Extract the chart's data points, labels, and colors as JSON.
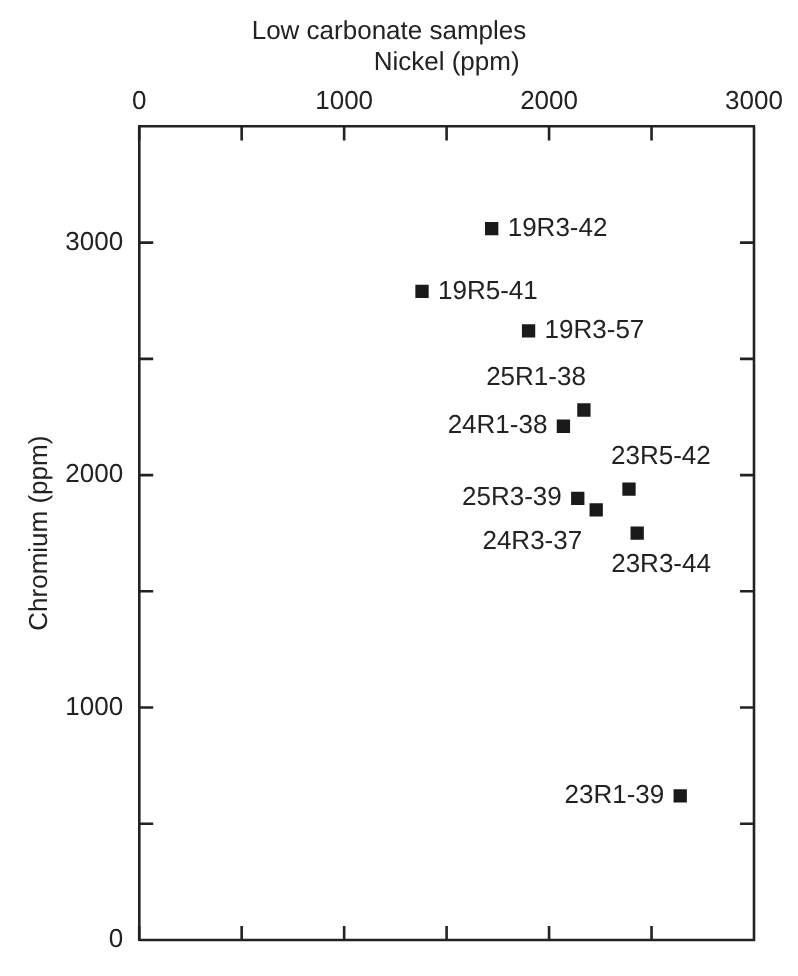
{
  "chart_data": {
    "type": "scatter",
    "title": "Low carbonate samples",
    "xlabel": "Nickel (ppm)",
    "ylabel": "Chromium (ppm)",
    "x": [
      1720,
      1380,
      1900,
      2170,
      2070,
      2390,
      2140,
      2230,
      2430,
      2640
    ],
    "series": [
      {
        "color": "#1a1a1a",
        "values": [
          3060,
          2790,
          2620,
          2280,
          2210,
          1940,
          1900,
          1850,
          1750,
          620
        ]
      }
    ],
    "xlim": [
      0,
      3000
    ],
    "ylim": [
      0,
      3500
    ],
    "xticks": [
      0,
      {
        "value": 500,
        "label": null
      },
      1000,
      {
        "value": 1500,
        "label": null
      },
      2000,
      {
        "value": 2500,
        "label": null
      },
      3000
    ],
    "yticks": [
      0,
      {
        "value": 500,
        "label": null
      },
      1000,
      {
        "value": 1500,
        "label": null
      },
      2000,
      {
        "value": 2500,
        "label": null
      },
      3000
    ],
    "marker": "square",
    "grid": false,
    "legend": false,
    "annotations": [
      {
        "text": "19R3-42",
        "x": 1720,
        "y": 3060
      },
      {
        "text": "19R5-41",
        "x": 1380,
        "y": 2790
      },
      {
        "text": "19R3-57",
        "x": 1900,
        "y": 2620
      },
      {
        "text": "25R1-38",
        "x": 2170,
        "y": 2280
      },
      {
        "text": "24R1-38",
        "x": 2070,
        "y": 2210
      },
      {
        "text": "23R5-42",
        "x": 2390,
        "y": 1940
      },
      {
        "text": "25R3-39",
        "x": 2140,
        "y": 1900
      },
      {
        "text": "24R3-37",
        "x": 2230,
        "y": 1850
      },
      {
        "text": "23R3-44",
        "x": 2430,
        "y": 1750
      },
      {
        "text": "23R1-39",
        "x": 2640,
        "y": 620
      }
    ]
  }
}
